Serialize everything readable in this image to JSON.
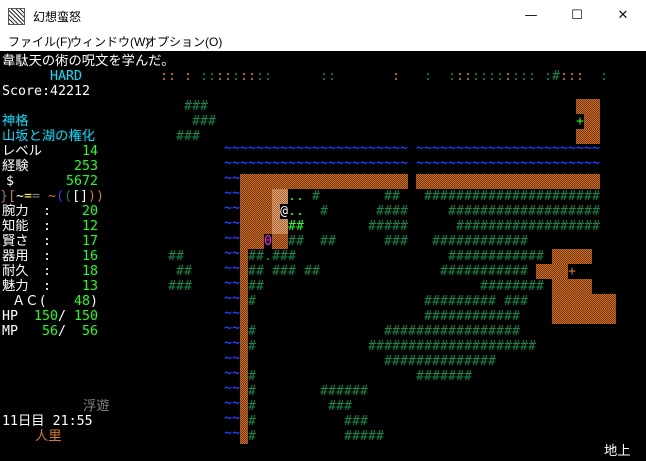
{
  "window": {
    "title": "幻想蛮怒",
    "controls": {
      "minimize": "—",
      "maximize": "☐",
      "close": "✕"
    }
  },
  "menu": [
    "ファイル(F)",
    "ウィンドウ(W)",
    "オプション(O)"
  ],
  "message": "韋駄天の術の呪文を学んだ。",
  "difficulty": "HARD",
  "score": "Score:42212",
  "title_line1": "神格",
  "title_line2": "山坂と湖の権化",
  "level": {
    "label": "レベル",
    "value": "14"
  },
  "exp": {
    "label": "経験",
    "value": "253"
  },
  "gold": {
    "label": "$",
    "value": "5672"
  },
  "equipment": [
    {
      "ch": "}",
      "color": "#808080"
    },
    {
      "ch": "[",
      "color": "#d87a2a"
    },
    {
      "ch": "~",
      "color": "#ffffff"
    },
    {
      "ch": "=",
      "color": "#ffff30"
    },
    {
      "ch": "=",
      "color": "#808080"
    },
    {
      "ch": " ",
      "color": "#000000"
    },
    {
      "ch": "~",
      "color": "#d87a2a"
    },
    {
      "ch": "(",
      "color": "#2040ff"
    },
    {
      "ch": "(",
      "color": "#108a4a"
    },
    {
      "ch": "[",
      "color": "#ffffff"
    },
    {
      "ch": "]",
      "color": "#ffffff"
    },
    {
      "ch": ")",
      "color": "#d87a2a"
    },
    {
      "ch": ")",
      "color": "#d87a2a"
    }
  ],
  "stats": [
    {
      "label": "腕力",
      "value": "20"
    },
    {
      "label": "知能",
      "value": "12"
    },
    {
      "label": "賢さ",
      "value": "17"
    },
    {
      "label": "器用",
      "value": "16"
    },
    {
      "label": "耐久",
      "value": "18"
    },
    {
      "label": "魅力",
      "value": "13"
    }
  ],
  "stat_colon": ":",
  "ac": {
    "label": "ＡＣ(",
    "value": "48",
    "close": ")"
  },
  "hp": {
    "label": "HP",
    "cur": "150",
    "max": "150",
    "sep": "/"
  },
  "mp": {
    "label": "MP",
    "cur": "56",
    "max": "56",
    "sep": "/"
  },
  "status_effect": "浮遊",
  "date_time": "11日目 21:55",
  "location": "人里",
  "depth": "地上",
  "colors": {
    "tree": "#108a4a",
    "water": "#2040ff",
    "wall": "#b8581c",
    "floor_green": "#20ff20",
    "floor_orange": "#d87a2a",
    "player": "#ffffff",
    "door": "#20ff20",
    "magenta": "#ff20ff"
  },
  "map": {
    "legend": {
      "T": "tree",
      "G": "bright-tree",
      "W": "wall",
      "L": "light-wall",
      "~": "water",
      "o": "orange-floor",
      "g": "green-floor",
      ".": "floor",
      "d": "dark-floor",
      "@": "player",
      "+": "door",
      "p": "orange-door",
      "M": "magenta-object",
      "_": "empty"
    },
    "rows": [
      "",
      "oo_o_ggoogoogg______gg_______o___g__googgggoggg_gTooo__g_____",
      "",
      "___TTT______________________________________________WWW_____",
      "____TTT_____________________________________________+WW_____",
      "__TTT_______________________________________________WWW_____",
      "________~~~~~~~~~~~~~~~~~~~~~~~_~~~~~~~~~~~~~~~~~~~~~~~_____",
      "________~~~~~~~~~~~~~~~~~~~~~~~_~~~~~~~~~~~~~~~~~~~~~~~_____",
      "________~~WWWWWWWWWWWWWWWWWWWWW_WWWWWWWWWWWWWWWWWWWWWWW_____",
      "________~~WWWWLL.._T________TT___TTTTTTTTTTTTTTTTTTTTTT_____",
      "________~~WWWWL@..__T______TTTT_____TTTTTTTTTTTTTTTTTTT_____",
      "________~~WWWWLLGG________TTTTT______TTTTTTTTTTTTTTTTTT_____",
      "________~~WWWMWWTT__TT______TTT___TTTTTTTTTTTT______________",
      "_TT_____~~WTTdTTT___________________TTTTTTTTTTTT_WWWWW________",
      "__TT____~~WTT_TTT_TT_______________TTTTTTTTTTT_WWWWp________",
      "_TTT____~~WTT___________________________TTTTTTTT_WWWWW________",
      "________~~WT_____________________TTTTTTTTT_TTT___WWWWWWWW_____",
      "________~~W______________________TTTTTTTTTTTT____WWWWWWWW_____",
      "________~~WT________________TTTTTTTTTTTTTTTTT_____",
      "________~~WT______________TTTTTTTTTTTTTTTTTTTTT___",
      "________~~W_________________TTTTTTTTTTTTTT________",
      "________~~WT____________________TTTTTTT_",
      "________~~WT________TTTTTT____",
      "________~~WT_________TTT______",
      "________~~WT___________TTT____",
      "________~~WT___________TTTTT__"
    ]
  }
}
